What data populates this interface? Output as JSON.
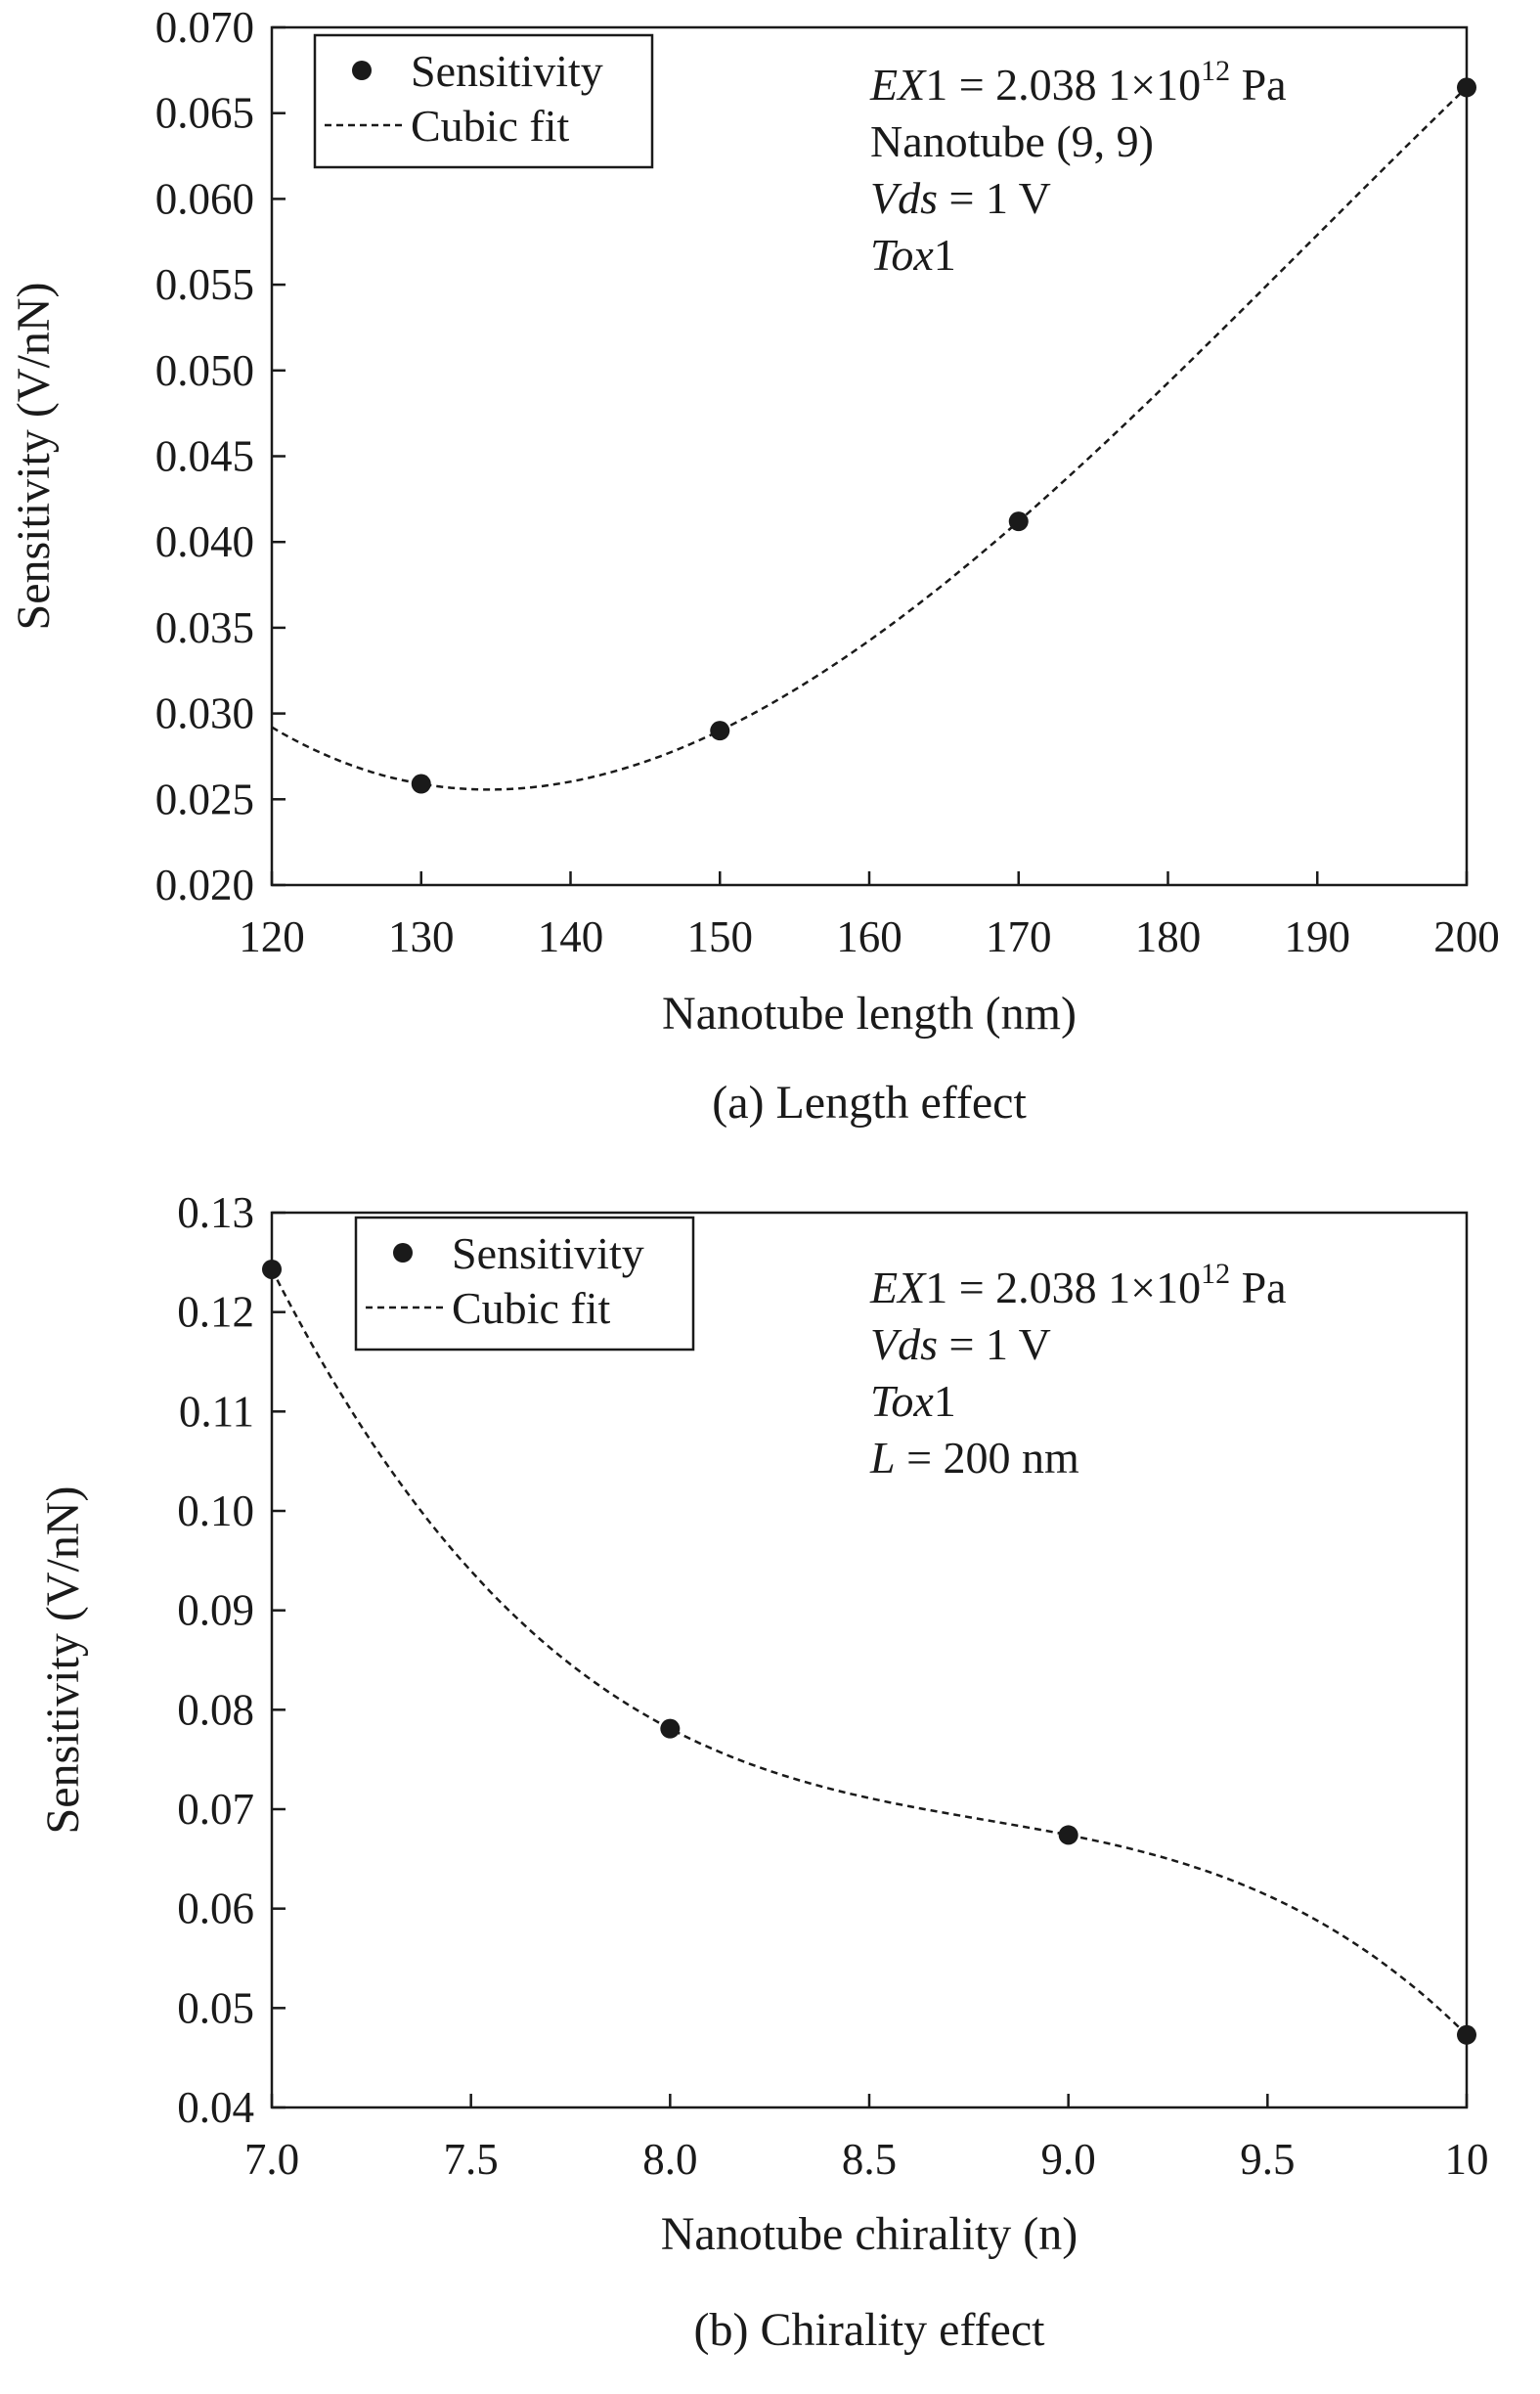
{
  "chart_data": [
    {
      "type": "scatter",
      "caption": "(a) Length effect",
      "xlabel": "Nanotube length (nm)",
      "ylabel": "Sensitivity (V/nN)",
      "xlim": [
        120,
        200
      ],
      "ylim": [
        0.02,
        0.07
      ],
      "x_ticks": [
        "120",
        "130",
        "140",
        "150",
        "160",
        "170",
        "180",
        "190",
        "200"
      ],
      "y_ticks": [
        "0.020",
        "0.025",
        "0.030",
        "0.035",
        "0.040",
        "0.045",
        "0.050",
        "0.055",
        "0.060",
        "0.065",
        "0.070"
      ],
      "grid": false,
      "legend": {
        "position": "top-left",
        "items": [
          {
            "label": "Sensitivity",
            "marker": "dot"
          },
          {
            "label": "Cubic fit",
            "marker": "dashed-line"
          }
        ]
      },
      "series": [
        {
          "name": "Sensitivity",
          "x": [
            130,
            150,
            170,
            200
          ],
          "y": [
            0.0259,
            0.029,
            0.0412,
            0.0665
          ]
        }
      ],
      "fit": {
        "name": "Cubic fit",
        "x_range": [
          120,
          200
        ]
      },
      "annotations": [
        {
          "italic": "EX",
          "rest": "1 = 2.038 1×10",
          "sup": "12",
          "tail": " Pa"
        },
        {
          "italic": "",
          "rest": "Nanotube (9, 9)",
          "sup": "",
          "tail": ""
        },
        {
          "italic": "Vds",
          "rest": " = 1 V",
          "sup": "",
          "tail": ""
        },
        {
          "italic": "Tox",
          "rest": "1",
          "sup": "",
          "tail": ""
        }
      ],
      "colors": {
        "marker": "#1a1a1a",
        "fit": "#1a1a1a",
        "axis": "#1a1a1a"
      }
    },
    {
      "type": "scatter",
      "caption": "(b) Chirality  effect",
      "xlabel": "Nanotube chirality (n)",
      "ylabel": "Sensitivity (V/nN)",
      "xlim": [
        7,
        10
      ],
      "ylim": [
        0.04,
        0.13
      ],
      "x_ticks": [
        "7.0",
        "7.5",
        "8.0",
        "8.5",
        "9.0",
        "9.5",
        "10"
      ],
      "y_ticks": [
        "0.04",
        "0.05",
        "0.06",
        "0.07",
        "0.08",
        "0.09",
        "0.10",
        "0.11",
        "0.12",
        "0.13"
      ],
      "grid": false,
      "legend": {
        "position": "top-left",
        "items": [
          {
            "label": "Sensitivity",
            "marker": "dot"
          },
          {
            "label": "Cubic fit",
            "marker": "dashed-line"
          }
        ]
      },
      "series": [
        {
          "name": "Sensitivity",
          "x": [
            7.0,
            8.0,
            9.0,
            10.0
          ],
          "y": [
            0.1243,
            0.0781,
            0.0674,
            0.0473
          ]
        }
      ],
      "fit": {
        "name": "Cubic fit",
        "x_range": [
          7,
          10
        ]
      },
      "annotations": [
        {
          "italic": "EX",
          "rest": "1 = 2.038 1×10",
          "sup": "12",
          "tail": " Pa"
        },
        {
          "italic": "Vds",
          "rest": " = 1 V",
          "sup": "",
          "tail": ""
        },
        {
          "italic": "Tox",
          "rest": "1",
          "sup": "",
          "tail": ""
        },
        {
          "italic": "L",
          "rest": " = 200 nm",
          "sup": "",
          "tail": ""
        }
      ],
      "colors": {
        "marker": "#1a1a1a",
        "fit": "#1a1a1a",
        "axis": "#1a1a1a"
      }
    }
  ]
}
